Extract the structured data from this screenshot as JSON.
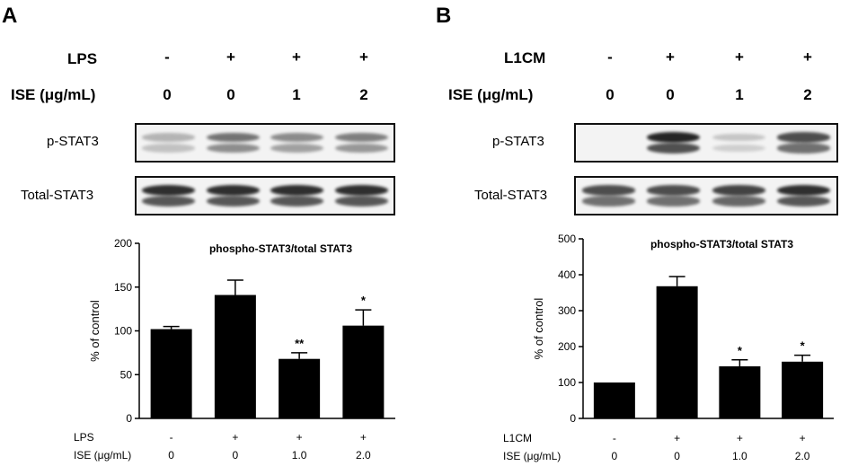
{
  "figure": {
    "panels": [
      {
        "letter": "A",
        "treatment_label": "LPS",
        "treatment_values": [
          "-",
          "+",
          "+",
          "+"
        ],
        "dose_label": "ISE (μg/mL)",
        "dose_values": [
          "0",
          "0",
          "1",
          "2"
        ],
        "blots": [
          {
            "label": "p-STAT3",
            "intensity": [
              0.3,
              0.62,
              0.5,
              0.56
            ]
          },
          {
            "label": "Total-STAT3",
            "intensity": [
              0.95,
              0.95,
              0.95,
              0.95
            ]
          }
        ],
        "colors": {
          "bar": "#000000",
          "blot_bg": "#f3f3f3",
          "band": "#1a1a1a"
        }
      },
      {
        "letter": "B",
        "treatment_label": "L1CM",
        "treatment_values": [
          "-",
          "+",
          "+",
          "+"
        ],
        "dose_label": "ISE (μg/mL)",
        "dose_values": [
          "0",
          "0",
          "1",
          "2"
        ],
        "blots": [
          {
            "label": "p-STAT3",
            "intensity": [
              0.0,
              1.0,
              0.22,
              0.8
            ]
          },
          {
            "label": "Total-STAT3",
            "intensity": [
              0.8,
              0.8,
              0.85,
              0.95
            ]
          }
        ],
        "colors": {
          "bar": "#000000",
          "blot_bg": "#f3f3f3",
          "band": "#1a1a1a"
        }
      }
    ]
  },
  "chart_data": [
    {
      "type": "bar",
      "title": "phospho-STAT3/total  STAT3",
      "ylabel": "% of control",
      "ylim": [
        0,
        200
      ],
      "yticks": [
        0,
        50,
        100,
        150,
        200
      ],
      "categories": [
        "0",
        "1",
        "2",
        "3"
      ],
      "row_labels": [
        {
          "label": "LPS",
          "values": [
            "-",
            "+",
            "+",
            "+"
          ]
        },
        {
          "label": "ISE (μg/mL)",
          "values": [
            "0",
            "0",
            "1.0",
            "2.0"
          ]
        }
      ],
      "values": [
        102,
        141,
        68,
        106
      ],
      "errors": [
        3,
        17,
        7,
        18
      ],
      "significance": [
        "",
        "",
        "**",
        "*"
      ]
    },
    {
      "type": "bar",
      "title": "phospho-STAT3/total  STAT3",
      "ylabel": "% of control",
      "ylim": [
        0,
        500
      ],
      "yticks": [
        0,
        100,
        200,
        300,
        400,
        500
      ],
      "categories": [
        "0",
        "1",
        "2",
        "3"
      ],
      "row_labels": [
        {
          "label": "L1CM",
          "values": [
            "-",
            "+",
            "+",
            "+"
          ]
        },
        {
          "label": "ISE (μg/mL)",
          "values": [
            "0",
            "0",
            "1.0",
            "2.0"
          ]
        }
      ],
      "values": [
        100,
        368,
        145,
        158
      ],
      "errors": [
        0,
        27,
        18,
        18
      ],
      "significance": [
        "",
        "",
        "*",
        "*"
      ]
    }
  ]
}
